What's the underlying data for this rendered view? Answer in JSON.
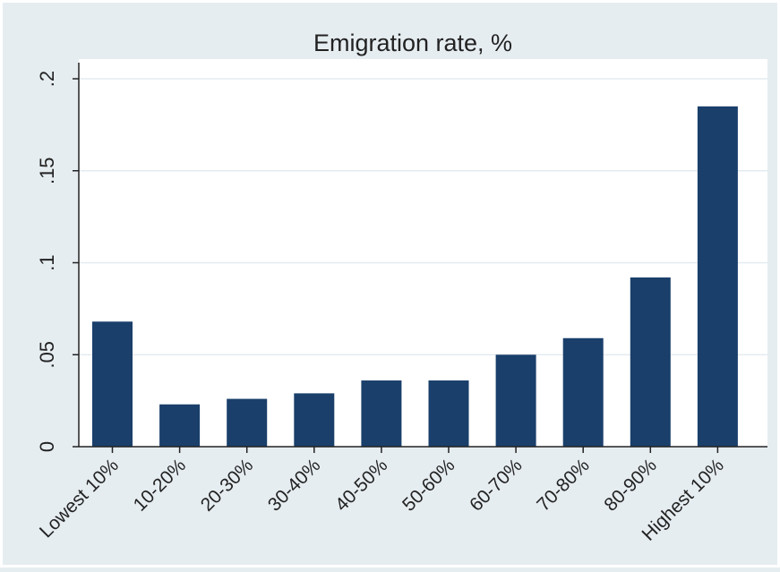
{
  "chart_data": {
    "type": "bar",
    "title": "Emigration rate, %",
    "xlabel": "",
    "ylabel": "",
    "categories": [
      "Lowest 10%",
      "10-20%",
      "20-30%",
      "30-40%",
      "40-50%",
      "50-60%",
      "60-70%",
      "70-80%",
      "80-90%",
      "Highest 10%"
    ],
    "values": [
      0.068,
      0.023,
      0.026,
      0.029,
      0.036,
      0.036,
      0.05,
      0.059,
      0.092,
      0.185
    ],
    "ylim": [
      0,
      0.2
    ],
    "yticks": [
      0,
      0.05,
      0.1,
      0.15,
      0.2
    ],
    "ytick_labels": [
      "0",
      ".05",
      ".1",
      ".15",
      ".2"
    ],
    "grid": true,
    "legend": "none",
    "colors": {
      "bar": "#1a3f6b",
      "plot_bg": "#ffffff",
      "outer_bg": "#e6edf1",
      "grid": "#e4ebef",
      "axis": "#222222"
    }
  }
}
